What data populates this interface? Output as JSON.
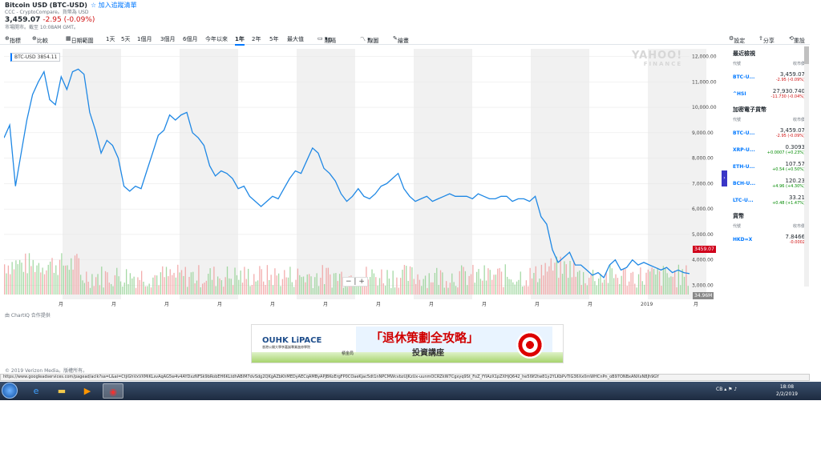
{
  "header": {
    "title": "Bitcoin USD (BTC-USD)",
    "watchlist": "加入追蹤清單",
    "source": "CCC - CryptoCompare。貨幣為 USD",
    "price": "3,459.07",
    "change": "-2.95 (-0.09%)",
    "market_note": "市場開市。截至 10:08AM GMT。"
  },
  "toolbar": {
    "indicators": "指標",
    "compare": "比較",
    "date_range": "日期範圍",
    "r1d": "1天",
    "r5d": "5天",
    "r1m": "1個月",
    "r3m": "3個月",
    "r6m": "6個月",
    "ytd": "今年以來",
    "r1y": "1年",
    "r2y": "2年",
    "r5y": "5年",
    "max": "最大值",
    "interval": "間隔",
    "interval_val": "1D",
    "draw": "線圖",
    "draw2": "繪畫",
    "settings": "設定",
    "share": "分享",
    "reset": "重設"
  },
  "chart": {
    "tooltip": "BTC-USD 3854.11",
    "current_value": "3459.07",
    "volume_value": "34.96M",
    "logo": "YAHOO!",
    "logo_sub": "FINANCE",
    "chartiq": "由 ChartIQ 合作提供",
    "zoom_minus": "−",
    "zoom_plus": "+"
  },
  "chart_data": {
    "type": "line",
    "title": "",
    "xlabel": "",
    "ylabel": "",
    "x_ticks": [
      "",
      "月",
      "月",
      "月",
      "月",
      "月",
      "月",
      "月",
      "月",
      "月",
      "月",
      "月",
      "2019",
      "月"
    ],
    "y_ticks": [
      "12,000.00",
      "11,000.00",
      "10,000.00",
      "9,000.00",
      "8,000.00",
      "7,000.00",
      "6,000.00",
      "5,000.00",
      "4,000.00",
      "3,000.00"
    ],
    "ylim": [
      2700,
      12300
    ],
    "series": [
      {
        "values": [
          8800,
          9300,
          6900,
          8200,
          9500,
          10500,
          11000,
          11400,
          10300,
          10100,
          11200,
          10700,
          11400,
          11500,
          11300,
          9800,
          9100,
          8200,
          8700,
          8500,
          8000,
          6900,
          6700,
          6900,
          6800,
          7500,
          8200,
          8900,
          9100,
          9700,
          9500,
          9700,
          9800,
          9000,
          8800,
          8500,
          7700,
          7300,
          7500,
          7400,
          7200,
          6800,
          6900,
          6500,
          6300,
          6100,
          6300,
          6500,
          6400,
          6800,
          7200,
          7500,
          7400,
          7900,
          8400,
          8200,
          7600,
          7400,
          7100,
          6600,
          6300,
          6500,
          6800,
          6500,
          6400,
          6600,
          6900,
          7000,
          7200,
          7400,
          6800,
          6500,
          6300,
          6400,
          6500,
          6300,
          6400,
          6500,
          6600,
          6500,
          6500,
          6500,
          6400,
          6600,
          6500,
          6400,
          6400,
          6500,
          6500,
          6300,
          6400,
          6400,
          6300,
          6500,
          5700,
          5400,
          4400,
          3900,
          4100,
          4300,
          3800,
          3800,
          3600,
          3400,
          3500,
          3300,
          3800,
          4000,
          3600,
          3700,
          4000,
          3800,
          3900,
          3800,
          3700,
          3600,
          3700,
          3500,
          3600,
          3500,
          3460
        ]
      }
    ]
  },
  "sidebar": {
    "recent_title": "最近檢視",
    "crypto_title": "加密電子貨幣",
    "fx_title": "貨幣",
    "code_label": "代號",
    "price_label": "收市價",
    "recent": [
      {
        "sym": "BTC-U...",
        "price": "3,459.07",
        "chg": "-2.95 (-0.09%)",
        "dir": "neg"
      },
      {
        "sym": "^HSI",
        "price": "27,930.740",
        "chg": "-11.730 (-0.04%)",
        "dir": "neg"
      }
    ],
    "crypto": [
      {
        "sym": "BTC-U...",
        "price": "3,459.07",
        "chg": "-2.95 (-0.09%)",
        "dir": "neg"
      },
      {
        "sym": "XRP-U...",
        "price": "0.3093",
        "chg": "+0.0007 (+0.23%)",
        "dir": "pos"
      },
      {
        "sym": "ETH-U...",
        "price": "107.57",
        "chg": "+0.54 (+0.50%)",
        "dir": "pos"
      },
      {
        "sym": "BCH-U...",
        "price": "120.23",
        "chg": "+4.96 (+4.30%)",
        "dir": "pos"
      },
      {
        "sym": "LTC-U...",
        "price": "33.21",
        "chg": "+0.48 (+1.47%)",
        "dir": "pos"
      }
    ],
    "fx": [
      {
        "sym": "HKD=X",
        "price": "7.8466",
        "chg": "-0.0002",
        "dir": "neg"
      }
    ]
  },
  "ad": {
    "brand": "OUHK LiPACE",
    "brand_sub": "香港公開大學李嘉誠專業進修學院",
    "gov": "積金局",
    "headline": "「退休策劃全攻略」",
    "subline": "投資講座"
  },
  "footer": {
    "copyright": "© 2019 Verizon Media。版權所有。",
    "status_url": "https://www.googleadservices.com/pagead/aclk?sa=L&ai=CtjiGhVxVXMiKLsvAqAG5w4v4AYDxzNFSk9bRobEH6KLtdhABIM7dvSdg2QKgAZbKhMEDyAECqAMByAPJBKoErgFP0COaeKjac5dt1nNPCMWcvbzUJKzUx-uunmOCRZkW7Cgxyq9St_FoZ_fYIAzX1pZXHjQ642_he5I9f2tw81y2YLKbPvTIG36Xx0mWHCnPn_oB97ONBxANXxN8Jh9GY",
    "time": "18:08",
    "date": "2/2/2019",
    "lang": "CB"
  }
}
